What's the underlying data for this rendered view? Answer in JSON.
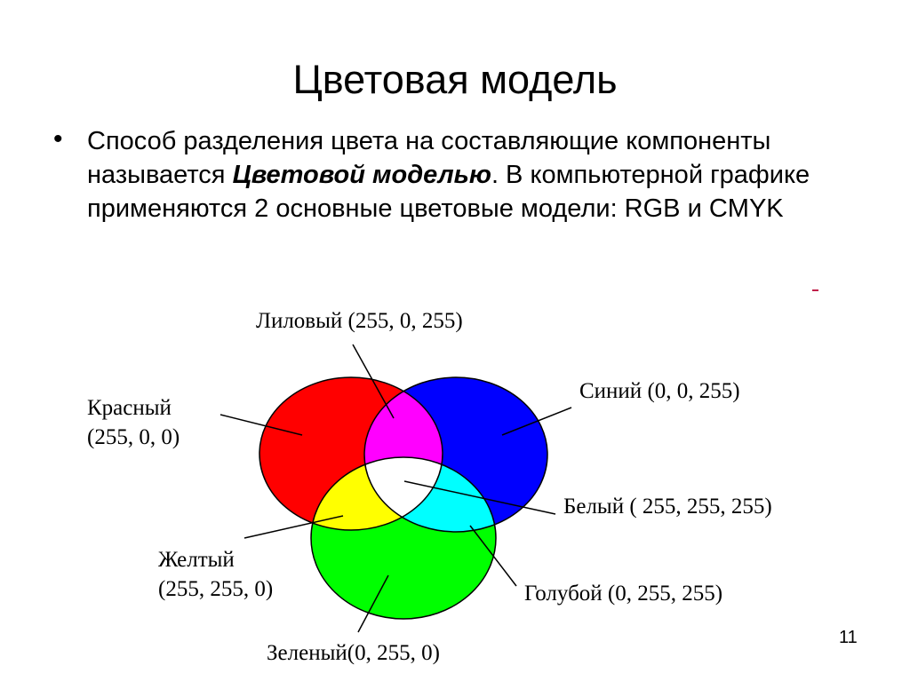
{
  "slide": {
    "title": "Цветовая модель",
    "bullet": "•",
    "text_before": "Способ разделения цвета на составляющие компоненты называется ",
    "text_bold": "Цветовой моделью",
    "text_after": ". В компьютерной графике применяются 2 основные цветовые модели: RGB и CMYK",
    "page_number": "11"
  },
  "diagram": {
    "labels": {
      "magenta": "Лиловый (255, 0, 255)",
      "red_name": "Красный",
      "red_value": "(255, 0, 0)",
      "blue": "Синий (0, 0, 255)",
      "white": "Белый ( 255, 255, 255)",
      "yellow_name": "Желтый",
      "yellow_value": "(255, 255, 0)",
      "cyan": "Голубой (0, 255, 255)",
      "green": "Зеленый(0, 255, 0)"
    },
    "colors": {
      "red": "#ff0000",
      "green": "#00ff00",
      "blue": "#0000ff",
      "magenta": "#ff00ff",
      "yellow": "#ffff00",
      "cyan": "#00ffff",
      "white": "#ffffff"
    }
  }
}
